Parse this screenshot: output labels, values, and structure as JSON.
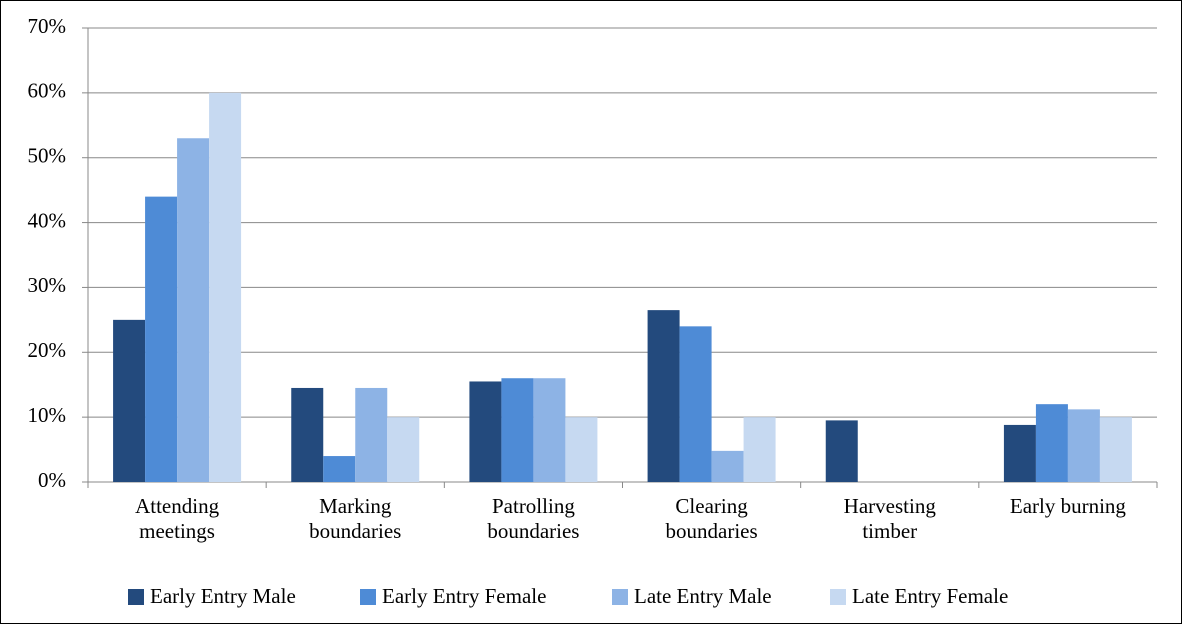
{
  "chart_data": {
    "type": "bar",
    "categories": [
      "Attending meetings",
      "Marking boundaries",
      "Patrolling boundaries",
      "Clearing boundaries",
      "Harvesting timber",
      "Early burning"
    ],
    "series": [
      {
        "name": "Early Entry Male",
        "color": "#234a7d",
        "values": [
          25,
          14.5,
          15.5,
          26.5,
          9.5,
          8.8
        ]
      },
      {
        "name": "Early Entry Female",
        "color": "#4e8bd6",
        "values": [
          44,
          4,
          16,
          24,
          0,
          12
        ]
      },
      {
        "name": "Late Entry Male",
        "color": "#8db3e5",
        "values": [
          53,
          14.5,
          16,
          4.8,
          0,
          11.2
        ]
      },
      {
        "name": "Late Entry Female",
        "color": "#c6d9f1",
        "values": [
          60,
          10,
          10,
          10,
          0,
          10
        ]
      }
    ],
    "ylim": [
      0,
      70
    ],
    "yticks": [
      {
        "value": 0,
        "label": "0%"
      },
      {
        "value": 10,
        "label": "10%"
      },
      {
        "value": 20,
        "label": "20%"
      },
      {
        "value": 30,
        "label": "30%"
      },
      {
        "value": 40,
        "label": "40%"
      },
      {
        "value": 50,
        "label": "50%"
      },
      {
        "value": 60,
        "label": "60%"
      },
      {
        "value": 70,
        "label": "70%"
      }
    ],
    "grid": true,
    "legend": "bottom"
  }
}
